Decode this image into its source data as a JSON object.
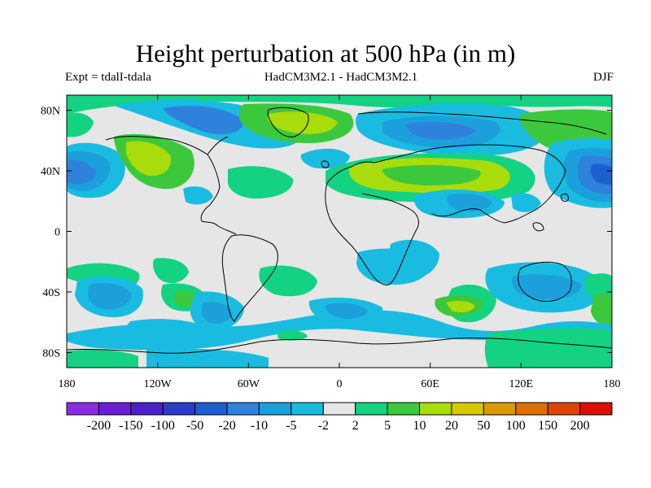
{
  "title": "Height perturbation at 500 hPa (in m)",
  "subtitle_left": "Expt = tdalI-tdala",
  "subtitle_center": "HadCM3M2.1 - HadCM3M2.1",
  "subtitle_right": "DJF",
  "map": {
    "projection": "equirectangular",
    "lon_range": [
      -180,
      180
    ],
    "lat_range": [
      -90,
      90
    ],
    "lat_ticks": [
      {
        "value": 80,
        "label": "80N"
      },
      {
        "value": 40,
        "label": "40N"
      },
      {
        "value": 0,
        "label": "0"
      },
      {
        "value": -40,
        "label": "40S"
      },
      {
        "value": -80,
        "label": "80S"
      }
    ],
    "lon_ticks": [
      {
        "value": -180,
        "label": "180"
      },
      {
        "value": -120,
        "label": "120W"
      },
      {
        "value": -60,
        "label": "60W"
      },
      {
        "value": 0,
        "label": "0"
      },
      {
        "value": 60,
        "label": "60E"
      },
      {
        "value": 120,
        "label": "120E"
      },
      {
        "value": 180,
        "label": "180"
      }
    ]
  },
  "colorbar": {
    "colors": [
      "#8a2be2",
      "#6a1fd6",
      "#4a20c8",
      "#2a3cc8",
      "#1e5fd0",
      "#2e82dc",
      "#1ca0dc",
      "#19bce0",
      "#e6e6e6",
      "#13d282",
      "#3cc83c",
      "#a8dc0a",
      "#d6c800",
      "#d89a00",
      "#dc7000",
      "#dc4600",
      "#d81000"
    ],
    "labels": [
      "-200",
      "-150",
      "-100",
      "-50",
      "-20",
      "-10",
      "-5",
      "-2",
      "2",
      "5",
      "10",
      "20",
      "50",
      "100",
      "150",
      "200"
    ]
  },
  "colors": {
    "background": "#e6e6e6",
    "coast": "#000000"
  }
}
